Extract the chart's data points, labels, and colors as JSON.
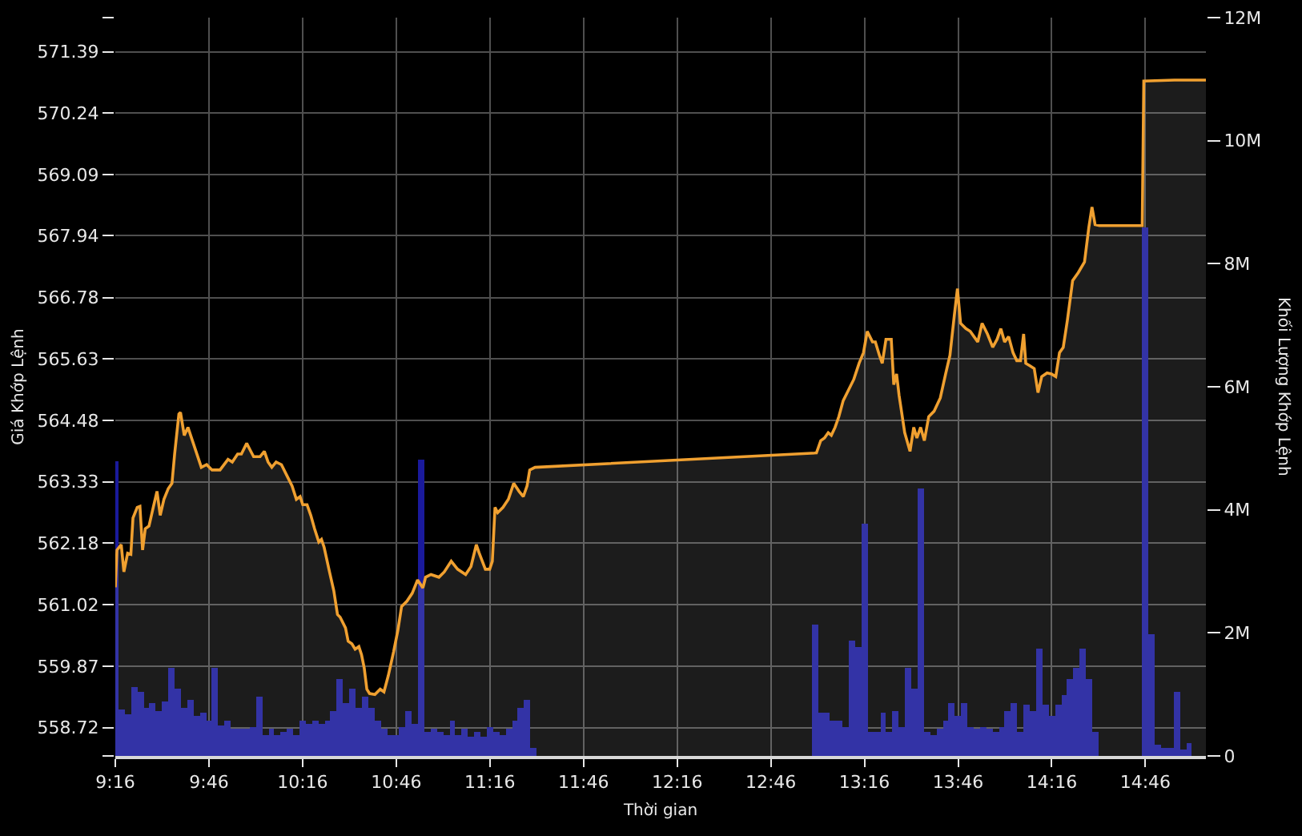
{
  "chart_data": {
    "type": "area",
    "xlabel": "Thời gian",
    "ylabel": "Giá Khớp Lệnh",
    "y2label": "Khối Lượng Khớp Lệnh",
    "xlim": [
      9.2667,
      15.09
    ],
    "xticks": [
      {
        "value": 9.2667,
        "label": "9:16"
      },
      {
        "value": 9.7667,
        "label": "9:46"
      },
      {
        "value": 10.2667,
        "label": "10:16"
      },
      {
        "value": 10.7667,
        "label": "10:46"
      },
      {
        "value": 11.2667,
        "label": "11:16"
      },
      {
        "value": 11.7667,
        "label": "11:46"
      },
      {
        "value": 12.2667,
        "label": "12:16"
      },
      {
        "value": 12.7667,
        "label": "12:46"
      },
      {
        "value": 13.2667,
        "label": "13:16"
      },
      {
        "value": 13.7667,
        "label": "13:46"
      },
      {
        "value": 14.2667,
        "label": "14:16"
      },
      {
        "value": 14.7667,
        "label": "14:46"
      }
    ],
    "ylim": [
      558.19,
      572.03
    ],
    "yticks": [
      {
        "value": 558.19,
        "label": null
      },
      558.72,
      559.87,
      561.02,
      562.18,
      563.33,
      564.48,
      565.63,
      566.78,
      567.94,
      569.09,
      570.24,
      571.39,
      {
        "value": 572.03,
        "label": null
      }
    ],
    "y2lim": [
      0,
      12000000
    ],
    "y2ticks": [
      0,
      {
        "value": 2000000,
        "label": "2M"
      },
      {
        "value": 4000000,
        "label": "4M"
      },
      {
        "value": 6000000,
        "label": "6M"
      },
      {
        "value": 8000000,
        "label": "8M"
      },
      {
        "value": 10000000,
        "label": "10M"
      },
      {
        "value": 12000000,
        "label": "12M"
      }
    ],
    "grid": true,
    "series": [
      {
        "type": "bar",
        "axis": "y2",
        "color": "#1a1a9c",
        "x": [
          9.2667,
          9.3,
          9.3333,
          9.3667,
          9.4,
          9.4333,
          9.4667,
          9.5,
          9.5333,
          9.5667,
          9.6,
          9.6333,
          9.6667,
          9.7,
          9.7333,
          9.7667,
          9.8,
          9.8333,
          9.8667,
          9.9,
          9.9333,
          9.9667,
          10,
          10.0333,
          10.0667,
          10.1,
          10.1333,
          10.1667,
          10.2,
          10.2333,
          10.2667,
          10.3,
          10.3333,
          10.3667,
          10.4,
          10.4333,
          10.4667,
          10.5,
          10.5333,
          10.5667,
          10.6,
          10.6333,
          10.6667,
          10.7,
          10.7333,
          10.7667,
          10.8,
          10.8333,
          10.8667,
          10.9,
          10.9333,
          10.9667,
          11,
          11.0333,
          11.0667,
          11.1,
          11.1333,
          11.1667,
          11.2,
          11.2333,
          11.2667,
          11.3,
          11.3333,
          11.3667,
          11.4,
          11.4333,
          11.4667,
          11.5,
          13,
          13.0333,
          13.0667,
          13.1,
          13.1333,
          13.1667,
          13.2,
          13.2333,
          13.2667,
          13.3,
          13.3333,
          13.3667,
          13.4,
          13.4333,
          13.4667,
          13.5,
          13.5333,
          13.5667,
          13.6,
          13.6333,
          13.6667,
          13.7,
          13.7333,
          13.7667,
          13.8,
          13.8333,
          13.8667,
          13.9,
          13.9333,
          13.9667,
          14,
          14.0333,
          14.0667,
          14.1,
          14.1333,
          14.1667,
          14.2,
          14.2333,
          14.2667,
          14.3,
          14.3333,
          14.3667,
          14.4,
          14.4333,
          14.4667,
          14.5,
          14.7667,
          14.8,
          14.8333,
          14.8667,
          14.9,
          14.9333,
          14.9667,
          15
        ],
        "values": [
          4780000,
          750000,
          680000,
          1130000,
          1050000,
          780000,
          850000,
          740000,
          880000,
          1430000,
          1090000,
          780000,
          920000,
          650000,
          700000,
          570000,
          1430000,
          500000,
          570000,
          440000,
          440000,
          440000,
          480000,
          960000,
          350000,
          440000,
          350000,
          390000,
          440000,
          350000,
          570000,
          520000,
          570000,
          520000,
          570000,
          740000,
          1260000,
          870000,
          1090000,
          780000,
          960000,
          780000,
          570000,
          440000,
          350000,
          350000,
          480000,
          740000,
          520000,
          4820000,
          390000,
          440000,
          390000,
          350000,
          570000,
          350000,
          440000,
          300000,
          390000,
          300000,
          480000,
          390000,
          350000,
          440000,
          570000,
          780000,
          910000,
          130000,
          2130000,
          690000,
          690000,
          570000,
          570000,
          480000,
          1870000,
          1780000,
          3780000,
          390000,
          390000,
          690000,
          390000,
          740000,
          480000,
          1430000,
          1090000,
          4340000,
          390000,
          350000,
          430000,
          570000,
          870000,
          650000,
          870000,
          480000,
          430000,
          480000,
          430000,
          390000,
          480000,
          740000,
          870000,
          390000,
          830000,
          740000,
          1740000,
          830000,
          650000,
          830000,
          1000000,
          1260000,
          1430000,
          1740000,
          1260000,
          390000,
          8600000,
          1990000,
          170000,
          130000,
          130000,
          1040000,
          100000,
          200000
        ]
      },
      {
        "color": "#f0a030",
        "x": [
          9.2667,
          9.2755,
          9.2983,
          9.3125,
          9.3325,
          9.3497,
          9.361,
          9.3838,
          9.3982,
          9.4123,
          9.4267,
          9.4465,
          9.4693,
          9.4893,
          9.5065,
          9.5263,
          9.5492,
          9.5692,
          9.5835,
          9.6062,
          9.6148,
          9.6348,
          9.6547,
          9.6832,
          9.726,
          9.7545,
          9.783,
          9.8258,
          9.8685,
          9.8913,
          9.9198,
          9.9398,
          9.9683,
          9.9827,
          10.0053,
          10.0397,
          10.0625,
          10.0823,
          10.1023,
          10.1252,
          10.1537,
          10.1822,
          10.2107,
          10.2335,
          10.2535,
          10.2677,
          10.2905,
          10.3105,
          10.3305,
          10.3533,
          10.3675,
          10.3818,
          10.4103,
          10.4332,
          10.453,
          10.4673,
          10.4958,
          10.51,
          10.53,
          10.5472,
          10.5672,
          10.5813,
          10.5957,
          10.6098,
          10.6242,
          10.6527,
          10.6812,
          10.7012,
          10.724,
          10.7525,
          10.7753,
          10.7952,
          10.8237,
          10.8522,
          10.8807,
          10.9092,
          10.9235,
          10.952,
          10.9948,
          11.0233,
          11.0603,
          11.0945,
          11.1373,
          11.1658,
          11.1943,
          11.2087,
          11.2428,
          11.2657,
          11.2798,
          11.2942,
          11.3083,
          11.3368,
          11.3655,
          11.394,
          11.4225,
          11.4453,
          11.4652,
          11.4795,
          11.508,
          13.0105,
          13.0333,
          13.0533,
          13.0733,
          13.09,
          13.11,
          13.13,
          13.1533,
          13.1817,
          13.21,
          13.2383,
          13.2617,
          13.2817,
          13.31,
          13.325,
          13.3467,
          13.3617,
          13.3817,
          13.41,
          13.4233,
          13.4383,
          13.4517,
          13.4817,
          13.51,
          13.53,
          13.5467,
          13.5667,
          13.5867,
          13.61,
          13.6383,
          13.6717,
          13.7,
          13.7233,
          13.7467,
          13.7633,
          13.78,
          13.8083,
          13.8317,
          13.8517,
          13.8717,
          13.895,
          13.9233,
          13.9517,
          13.975,
          13.995,
          14.015,
          14.0367,
          14.06,
          14.08,
          14.1,
          14.1167,
          14.1283,
          14.1517,
          14.1733,
          14.1933,
          14.2133,
          14.2417,
          14.265,
          14.2883,
          14.3083,
          14.3283,
          14.35,
          14.3783,
          14.4083,
          14.4417,
          14.465,
          14.4817,
          14.4983,
          14.5217,
          14.75,
          14.7583,
          14.9217,
          15.09
        ],
        "values": [
          561.35,
          562.05,
          562.15,
          561.64,
          561.99,
          561.97,
          562.65,
          562.85,
          562.87,
          562.05,
          562.45,
          562.5,
          562.85,
          563.15,
          562.7,
          563.0,
          563.2,
          563.3,
          563.85,
          564.6,
          564.63,
          564.2,
          564.35,
          564.05,
          563.6,
          563.65,
          563.55,
          563.55,
          563.75,
          563.7,
          563.85,
          563.85,
          564.05,
          563.95,
          563.8,
          563.8,
          563.9,
          563.7,
          563.6,
          563.7,
          563.65,
          563.45,
          563.25,
          563.0,
          563.05,
          562.9,
          562.9,
          562.7,
          562.45,
          562.2,
          562.25,
          562.1,
          561.64,
          561.29,
          560.84,
          560.79,
          560.59,
          560.34,
          560.29,
          560.19,
          560.24,
          560.09,
          559.84,
          559.44,
          559.36,
          559.34,
          559.44,
          559.39,
          559.69,
          560.14,
          560.54,
          560.99,
          561.09,
          561.24,
          561.49,
          561.34,
          561.54,
          561.59,
          561.54,
          561.64,
          561.84,
          561.69,
          561.59,
          561.74,
          562.15,
          562.0,
          561.69,
          561.69,
          561.84,
          562.85,
          562.75,
          562.85,
          563.0,
          563.3,
          563.15,
          563.05,
          563.25,
          563.55,
          563.6,
          563.87,
          564.1,
          564.15,
          564.25,
          564.2,
          564.35,
          564.55,
          564.85,
          565.05,
          565.25,
          565.55,
          565.75,
          566.15,
          565.95,
          565.95,
          565.7,
          565.55,
          566.0,
          566.0,
          565.15,
          565.35,
          564.95,
          564.25,
          563.9,
          564.35,
          564.15,
          564.35,
          564.1,
          564.55,
          564.65,
          564.9,
          565.35,
          565.7,
          566.45,
          566.95,
          566.3,
          566.2,
          566.15,
          566.05,
          565.95,
          566.3,
          566.1,
          565.85,
          566.0,
          566.2,
          565.95,
          566.05,
          565.75,
          565.6,
          565.6,
          566.1,
          565.55,
          565.5,
          565.45,
          565.0,
          565.3,
          565.37,
          565.35,
          565.3,
          565.75,
          565.85,
          566.35,
          567.1,
          567.25,
          567.45,
          568.1,
          568.48,
          568.15,
          568.13,
          568.13,
          570.84,
          570.86,
          570.86
        ]
      }
    ]
  }
}
